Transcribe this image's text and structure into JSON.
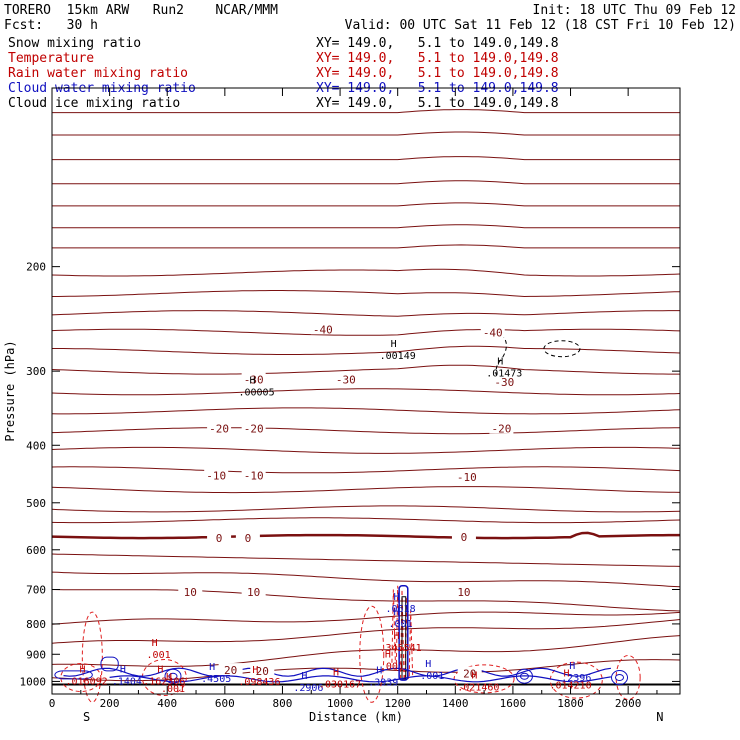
{
  "header": {
    "model": "TORERO  15km ARW   Run2    NCAR/MMM",
    "init": "Init: 18 UTC Thu 09 Feb 12",
    "fcst": "Fcst:   30 h",
    "valid": "Valid: 00 UTC Sat 11 Feb 12 (18 CST Fri 10 Feb 12)"
  },
  "fields": [
    {
      "name": "Snow mixing ratio",
      "xy": "XY= 149.0,   5.1 to 149.0,149.8",
      "color": "#000000"
    },
    {
      "name": "Temperature",
      "xy": "XY= 149.0,   5.1 to 149.0,149.8",
      "color": "#c00000"
    },
    {
      "name": "Rain water mixing ratio",
      "xy": "XY= 149.0,   5.1 to 149.0,149.8",
      "color": "#c00000"
    },
    {
      "name": "Cloud water mixing ratio",
      "xy": "XY= 149.0,   5.1 to 149.0,149.8",
      "color": "#1010c0"
    },
    {
      "name": "Cloud ice mixing ratio",
      "xy": "XY= 149.0,   5.1 to 149.0,149.8",
      "color": "#000000"
    }
  ],
  "chart_data": {
    "type": "contour-cross-section",
    "xlabel": "Distance (km)",
    "ylabel": "Pressure (hPa)",
    "xlim": [
      0,
      2180
    ],
    "ylim": [
      1050,
      100
    ],
    "x_ticks": [
      0,
      200,
      400,
      600,
      800,
      1000,
      1200,
      1400,
      1600,
      1800,
      2000
    ],
    "y_ticks": [
      200,
      300,
      400,
      500,
      600,
      700,
      800,
      900,
      1000
    ],
    "end_labels": {
      "left": "S",
      "right": "N"
    },
    "temperature_labels": [
      {
        "text": "-40",
        "x": 940,
        "p": 255
      },
      {
        "text": "-40",
        "x": 1530,
        "p": 258
      },
      {
        "text": "-30",
        "x": 700,
        "p": 310
      },
      {
        "text": "-30",
        "x": 1020,
        "p": 310
      },
      {
        "text": "-30",
        "x": 1570,
        "p": 313
      },
      {
        "text": "-20",
        "x": 580,
        "p": 375
      },
      {
        "text": "-20",
        "x": 700,
        "p": 375
      },
      {
        "text": "-20",
        "x": 1560,
        "p": 375
      },
      {
        "text": "-10",
        "x": 570,
        "p": 450
      },
      {
        "text": "-10",
        "x": 700,
        "p": 450
      },
      {
        "text": "-10",
        "x": 1440,
        "p": 452
      },
      {
        "text": "0",
        "x": 580,
        "p": 573
      },
      {
        "text": "0",
        "x": 680,
        "p": 573
      },
      {
        "text": "0",
        "x": 1430,
        "p": 571
      },
      {
        "text": "10",
        "x": 480,
        "p": 707
      },
      {
        "text": "10",
        "x": 700,
        "p": 707
      },
      {
        "text": "10",
        "x": 1430,
        "p": 707
      },
      {
        "text": "20",
        "x": 620,
        "p": 957
      },
      {
        "text": "20",
        "x": 730,
        "p": 960
      },
      {
        "text": "20",
        "x": 1450,
        "p": 970
      }
    ],
    "maxima_labels": [
      {
        "text": ".00149",
        "x": 1200,
        "p": 283,
        "color": "#000000"
      },
      {
        "text": ".01473",
        "x": 1570,
        "p": 303,
        "color": "#000000"
      },
      {
        "text": ".00005",
        "x": 710,
        "p": 326,
        "color": "#000000"
      },
      {
        "text": ".0618",
        "x": 1210,
        "p": 755,
        "color": "#1010c0"
      },
      {
        "text": ".001",
        "x": 1210,
        "p": 800,
        "color": "#1010c0"
      },
      {
        "text": ".345541",
        "x": 1210,
        "p": 878,
        "color": "#c00000"
      },
      {
        "text": ".001",
        "x": 370,
        "p": 902,
        "color": "#c00000"
      },
      {
        "text": ".001",
        "x": 1180,
        "p": 943,
        "color": "#c00000"
      },
      {
        "text": ".016092",
        "x": 120,
        "p": 1000,
        "color": "#c00000"
      },
      {
        "text": ".1404",
        "x": 260,
        "p": 1000,
        "color": "#1010c0"
      },
      {
        "text": ".162306",
        "x": 390,
        "p": 1000,
        "color": "#c00000"
      },
      {
        "text": ".4505",
        "x": 570,
        "p": 990,
        "color": "#1010c0"
      },
      {
        "text": ".098436",
        "x": 720,
        "p": 1003,
        "color": "#c00000"
      },
      {
        "text": ".2906",
        "x": 890,
        "p": 1025,
        "color": "#1010c0"
      },
      {
        "text": ".030167",
        "x": 1000,
        "p": 1012,
        "color": "#c00000"
      },
      {
        "text": ".3939",
        "x": 1150,
        "p": 1005,
        "color": "#1010c0"
      },
      {
        "text": ".001",
        "x": 1320,
        "p": 980,
        "color": "#1010c0"
      },
      {
        "text": ".021460",
        "x": 1480,
        "p": 1023,
        "color": "#c00000"
      },
      {
        "text": ".2396",
        "x": 1820,
        "p": 987,
        "color": "#1010c0"
      },
      {
        "text": ".014210",
        "x": 1800,
        "p": 1015,
        "color": "#c00000"
      },
      {
        "text": ".001",
        "x": 420,
        "p": 1030,
        "color": "#c00000"
      }
    ],
    "colors": {
      "temperature": "#7a1010",
      "rain": "#e02020",
      "cloud_water": "#1010c0",
      "cloud_ice": "#000000",
      "axis": "#000000"
    }
  }
}
